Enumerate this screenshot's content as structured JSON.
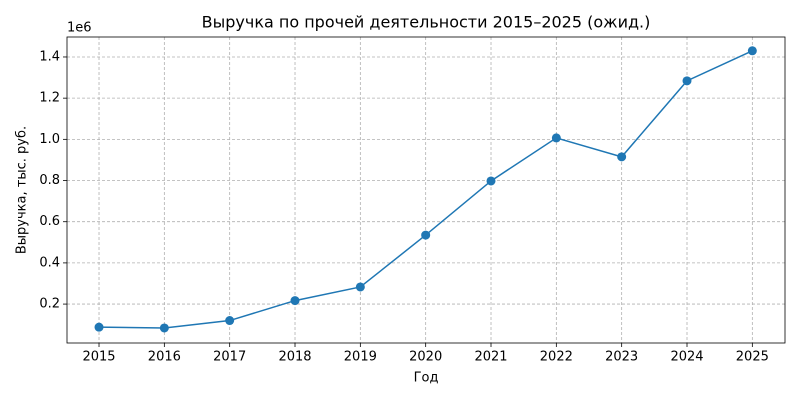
{
  "chart_data": {
    "type": "line",
    "title": "Выручка по прочей деятельности 2015–2025 (ожид.)",
    "x_label": "Год",
    "y_label": "Выручка, тыс. руб.",
    "y_offset_label": "1e6",
    "x": [
      2015,
      2016,
      2017,
      2018,
      2019,
      2020,
      2021,
      2022,
      2023,
      2024,
      2025
    ],
    "series": [
      {
        "name": "Выручка",
        "color": "#1f77b4",
        "values": [
          0.088,
          0.084,
          0.12,
          0.217,
          0.283,
          0.535,
          0.798,
          1.007,
          0.915,
          1.284,
          1.43
        ]
      }
    ],
    "xlim": [
      2014.51,
      2025.5
    ],
    "xticks": [
      2015,
      2016,
      2017,
      2018,
      2019,
      2020,
      2021,
      2022,
      2023,
      2024,
      2025
    ],
    "ylim": [
      0.011,
      1.497
    ],
    "yticks": [
      0.2,
      0.4,
      0.6,
      0.8,
      {
        "value": 1,
        "label": "1.0"
      },
      1.2,
      1.4
    ],
    "grid": true,
    "markers": true
  }
}
